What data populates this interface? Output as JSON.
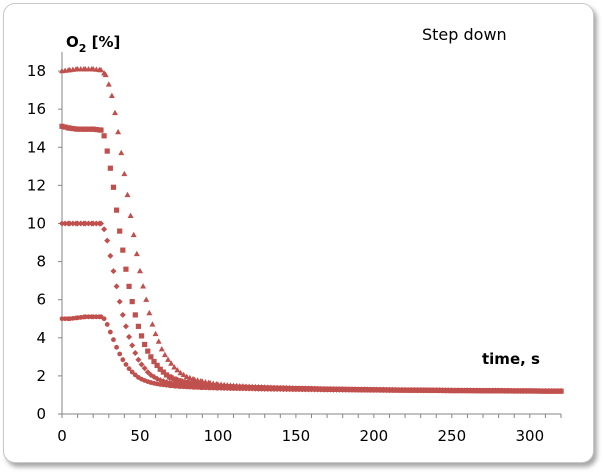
{
  "chart_data": {
    "type": "scatter",
    "title": "",
    "annotation": "Step down",
    "ylabel_main": "O",
    "ylabel_sub": "2",
    "ylabel_unit": " [%]",
    "xlabel": "time, s",
    "xlim": [
      0,
      320
    ],
    "ylim": [
      0,
      19
    ],
    "x_ticks": [
      0,
      50,
      100,
      150,
      200,
      250,
      300
    ],
    "y_ticks": [
      0,
      2,
      4,
      6,
      8,
      10,
      12,
      14,
      16,
      18
    ],
    "grid": false,
    "legend": "none",
    "series": [
      {
        "marker": "triangle",
        "color": "#c0504d",
        "x": [
          0,
          5,
          10,
          15,
          20,
          25,
          28,
          30,
          32,
          34,
          36,
          38,
          40,
          42,
          44,
          46,
          48,
          50,
          52,
          54,
          56,
          58,
          60,
          62,
          64,
          66,
          68,
          70,
          72,
          74,
          76,
          78,
          80,
          85,
          90,
          95,
          100,
          110,
          120,
          130,
          140,
          150,
          160,
          170,
          180,
          190,
          200,
          210,
          220,
          230,
          240,
          250,
          260,
          270,
          280,
          290,
          300,
          310,
          320
        ],
        "y": [
          18.0,
          18.05,
          18.1,
          18.1,
          18.1,
          18.05,
          17.8,
          17.3,
          16.7,
          15.8,
          14.8,
          13.7,
          12.6,
          11.5,
          10.4,
          9.4,
          8.4,
          7.5,
          6.7,
          6.0,
          5.3,
          4.7,
          4.2,
          3.8,
          3.4,
          3.1,
          2.85,
          2.65,
          2.45,
          2.3,
          2.15,
          2.05,
          1.95,
          1.8,
          1.7,
          1.62,
          1.55,
          1.48,
          1.43,
          1.4,
          1.37,
          1.35,
          1.33,
          1.31,
          1.3,
          1.29,
          1.28,
          1.27,
          1.26,
          1.25,
          1.24,
          1.24,
          1.23,
          1.22,
          1.22,
          1.21,
          1.2,
          1.2,
          1.2
        ]
      },
      {
        "marker": "square",
        "color": "#c0504d",
        "x": [
          0,
          5,
          10,
          15,
          20,
          25,
          27,
          29,
          31,
          33,
          35,
          37,
          39,
          41,
          43,
          45,
          47,
          49,
          51,
          53,
          55,
          57,
          59,
          61,
          63,
          65,
          67,
          70,
          73,
          76,
          80,
          85,
          90,
          95,
          100,
          110,
          120,
          130,
          140,
          150,
          160,
          170,
          180,
          190,
          200,
          210,
          220,
          230,
          240,
          250,
          260,
          270,
          280,
          290,
          300,
          310,
          320
        ],
        "y": [
          15.1,
          15.0,
          14.95,
          14.95,
          14.95,
          14.9,
          14.6,
          13.8,
          12.9,
          11.9,
          10.7,
          9.6,
          8.6,
          7.6,
          6.7,
          5.9,
          5.2,
          4.6,
          4.1,
          3.65,
          3.3,
          3.0,
          2.75,
          2.55,
          2.35,
          2.2,
          2.05,
          1.9,
          1.8,
          1.72,
          1.65,
          1.58,
          1.53,
          1.49,
          1.46,
          1.42,
          1.39,
          1.37,
          1.35,
          1.33,
          1.32,
          1.3,
          1.29,
          1.28,
          1.27,
          1.26,
          1.25,
          1.25,
          1.24,
          1.23,
          1.23,
          1.22,
          1.22,
          1.21,
          1.21,
          1.2,
          1.2
        ]
      },
      {
        "marker": "diamond",
        "color": "#c0504d",
        "x": [
          0,
          5,
          10,
          15,
          20,
          25,
          27,
          29,
          31,
          33,
          35,
          37,
          39,
          41,
          43,
          45,
          47,
          49,
          51,
          53,
          55,
          57,
          59,
          61,
          63,
          65,
          67,
          70,
          73,
          76,
          80,
          85,
          90,
          95,
          100,
          110,
          120,
          130,
          140,
          150,
          160,
          170,
          180,
          190,
          200,
          210,
          220,
          230,
          240,
          250,
          260,
          270,
          280,
          290,
          300,
          310,
          320
        ],
        "y": [
          10.0,
          10.0,
          10.0,
          10.0,
          10.0,
          10.0,
          9.7,
          9.1,
          8.3,
          7.5,
          6.7,
          5.9,
          5.2,
          4.6,
          4.05,
          3.6,
          3.2,
          2.85,
          2.6,
          2.4,
          2.2,
          2.05,
          1.95,
          1.85,
          1.78,
          1.72,
          1.67,
          1.6,
          1.55,
          1.52,
          1.48,
          1.45,
          1.42,
          1.4,
          1.38,
          1.36,
          1.34,
          1.32,
          1.31,
          1.3,
          1.29,
          1.28,
          1.27,
          1.27,
          1.26,
          1.25,
          1.25,
          1.24,
          1.24,
          1.23,
          1.23,
          1.22,
          1.22,
          1.21,
          1.21,
          1.2,
          1.2
        ]
      },
      {
        "marker": "circle",
        "color": "#c0504d",
        "x": [
          0,
          5,
          10,
          15,
          20,
          25,
          27,
          29,
          31,
          33,
          35,
          37,
          39,
          41,
          43,
          45,
          47,
          49,
          51,
          53,
          55,
          57,
          59,
          61,
          63,
          65,
          67,
          70,
          73,
          76,
          80,
          85,
          90,
          95,
          100,
          110,
          120,
          130,
          140,
          150,
          160,
          170,
          180,
          190,
          200,
          210,
          220,
          230,
          240,
          250,
          260,
          270,
          280,
          290,
          300,
          310,
          320
        ],
        "y": [
          5.0,
          5.0,
          5.05,
          5.1,
          5.1,
          5.1,
          5.0,
          4.7,
          4.3,
          3.9,
          3.5,
          3.15,
          2.85,
          2.6,
          2.38,
          2.2,
          2.05,
          1.92,
          1.83,
          1.76,
          1.7,
          1.65,
          1.61,
          1.58,
          1.55,
          1.53,
          1.51,
          1.48,
          1.46,
          1.44,
          1.42,
          1.4,
          1.38,
          1.37,
          1.36,
          1.34,
          1.33,
          1.31,
          1.3,
          1.29,
          1.28,
          1.28,
          1.27,
          1.26,
          1.26,
          1.25,
          1.25,
          1.24,
          1.24,
          1.23,
          1.23,
          1.22,
          1.22,
          1.21,
          1.21,
          1.2,
          1.2
        ]
      }
    ]
  }
}
